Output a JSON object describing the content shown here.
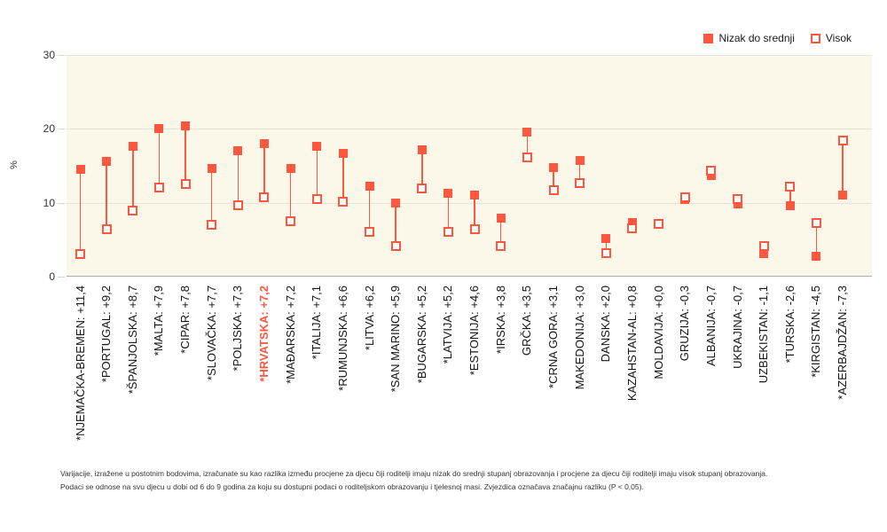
{
  "legend": {
    "items": [
      {
        "label": "Nizak do srednji",
        "marker": "filled-square"
      },
      {
        "label": "Visok",
        "marker": "open-square"
      }
    ]
  },
  "y_axis": {
    "label": "%",
    "ticks": [
      0,
      10,
      20,
      30
    ],
    "max": 30
  },
  "colors": {
    "accent": "#FF5640",
    "plot_bg": "#FCF8E9",
    "grid": "#E5E2D6",
    "axis_zero": "#ABABAB"
  },
  "chart_data": {
    "type": "dumbbell",
    "title": "",
    "xlabel": "",
    "ylabel": "%",
    "ylim": [
      0,
      30
    ],
    "grid": true,
    "legend_position": "top-right",
    "series_names": [
      "Nizak do srednji",
      "Visok"
    ],
    "points": [
      {
        "label": "*NJEMAČKA-BREMEN: +11,4",
        "country": "Njemačka-Bremen",
        "diff": "+11,4",
        "low_mid": 14.5,
        "high": 3.1,
        "highlight": false
      },
      {
        "label": "*PORTUGAL: +9,2",
        "country": "Portugal",
        "diff": "+9,2",
        "low_mid": 15.6,
        "high": 6.4,
        "highlight": false
      },
      {
        "label": "*ŠPANJOLSKA: +8,7",
        "country": "Španjolska",
        "diff": "+8,7",
        "low_mid": 17.6,
        "high": 8.9,
        "highlight": false
      },
      {
        "label": "*MALTA: +7,9",
        "country": "Malta",
        "diff": "+7,9",
        "low_mid": 20.0,
        "high": 12.1,
        "highlight": false
      },
      {
        "label": "*CIPAR: +7,8",
        "country": "Cipar",
        "diff": "+7,8",
        "low_mid": 20.4,
        "high": 12.6,
        "highlight": false
      },
      {
        "label": "*SLOVAČKA: +7,7",
        "country": "Slovačka",
        "diff": "+7,7",
        "low_mid": 14.7,
        "high": 7.0,
        "highlight": false
      },
      {
        "label": "*POLJSKA: +7,3",
        "country": "Poljska",
        "diff": "+7,3",
        "low_mid": 17.0,
        "high": 9.7,
        "highlight": false
      },
      {
        "label": "*HRVATSKA: +7,2",
        "country": "Hrvatska",
        "diff": "+7,2",
        "low_mid": 18.0,
        "high": 10.8,
        "highlight": true
      },
      {
        "label": "*MAĐARSKA: +7,2",
        "country": "Mađarska",
        "diff": "+7,2",
        "low_mid": 14.7,
        "high": 7.5,
        "highlight": false
      },
      {
        "label": "*ITALIJA: +7,1",
        "country": "Italija",
        "diff": "+7,1",
        "low_mid": 17.6,
        "high": 10.5,
        "highlight": false
      },
      {
        "label": "*RUMUNJSKA: +6,6",
        "country": "Rumunjska",
        "diff": "+6,6",
        "low_mid": 16.7,
        "high": 10.1,
        "highlight": false
      },
      {
        "label": "*LITVA: +6,2",
        "country": "Litva",
        "diff": "+6,2",
        "low_mid": 12.3,
        "high": 6.1,
        "highlight": false
      },
      {
        "label": "*SAN MARINO: +5,9",
        "country": "San Marino",
        "diff": "+5,9",
        "low_mid": 10.0,
        "high": 4.1,
        "highlight": false
      },
      {
        "label": "*BUGARSKA: +5,2",
        "country": "Bugarska",
        "diff": "+5,2",
        "low_mid": 17.2,
        "high": 12.0,
        "highlight": false
      },
      {
        "label": "*LATVIJA: +5,2",
        "country": "Latvija",
        "diff": "+5,2",
        "low_mid": 11.3,
        "high": 6.1,
        "highlight": false
      },
      {
        "label": "*ESTONIJA: +4,6",
        "country": "Estonija",
        "diff": "+4,6",
        "low_mid": 11.0,
        "high": 6.4,
        "highlight": false
      },
      {
        "label": "*IRSKA: +3,8",
        "country": "Irska",
        "diff": "+3,8",
        "low_mid": 7.9,
        "high": 4.1,
        "highlight": false
      },
      {
        "label": "GRČKA: +3,5",
        "country": "Grčka",
        "diff": "+3,5",
        "low_mid": 19.6,
        "high": 16.1,
        "highlight": false
      },
      {
        "label": "*CRNA GORA: +3,1",
        "country": "Crna Gora",
        "diff": "+3,1",
        "low_mid": 14.8,
        "high": 11.7,
        "highlight": false
      },
      {
        "label": "MAKEDONIJA: +3,0",
        "country": "Makedonija",
        "diff": "+3,0",
        "low_mid": 15.7,
        "high": 12.7,
        "highlight": false
      },
      {
        "label": "DANSKA: +2,0",
        "country": "Danska",
        "diff": "+2,0",
        "low_mid": 5.2,
        "high": 3.2,
        "highlight": false
      },
      {
        "label": "KAZAHSTAN-AL: +0,8",
        "country": "Kazahstan-Al",
        "diff": "+0,8",
        "low_mid": 7.3,
        "high": 6.5,
        "highlight": false
      },
      {
        "label": "MOLDAVIJA: +0,0",
        "country": "Moldavija",
        "diff": "+0,0",
        "low_mid": 7.2,
        "high": 7.2,
        "highlight": false
      },
      {
        "label": "GRUZIJA: -0,3",
        "country": "Gruzija",
        "diff": "-0,3",
        "low_mid": 10.5,
        "high": 10.8,
        "highlight": false
      },
      {
        "label": "ALBANIJA: -0,7",
        "country": "Albanija",
        "diff": "-0,7",
        "low_mid": 13.7,
        "high": 14.4,
        "highlight": false
      },
      {
        "label": "UKRAJINA: -0,7",
        "country": "Ukrajina",
        "diff": "-0,7",
        "low_mid": 9.8,
        "high": 10.5,
        "highlight": false
      },
      {
        "label": "UZBEKISTAN: -1,1",
        "country": "Uzbekistan",
        "diff": "-1,1",
        "low_mid": 3.1,
        "high": 4.2,
        "highlight": false
      },
      {
        "label": "*TURSKA: -2,6",
        "country": "Turska",
        "diff": "-2,6",
        "low_mid": 9.6,
        "high": 12.2,
        "highlight": false
      },
      {
        "label": "*KIRGISTAN: -4,5",
        "country": "Kirgistan",
        "diff": "-4,5",
        "low_mid": 2.8,
        "high": 7.3,
        "highlight": false
      },
      {
        "label": "*AZERBAJDŽAN: -7,3",
        "country": "Azerbajdžan",
        "diff": "-7,3",
        "low_mid": 11.1,
        "high": 18.4,
        "highlight": false
      }
    ]
  },
  "footnote": {
    "line1": "Varijacije, izražene u postotnim bodovima, izračunate su kao razlika između procjene za djecu čiji roditelji imaju nizak do srednji stupanj obrazovanja i procjene za djecu čiji roditelji imaju visok stupanj obrazovanja.",
    "line2": "Podaci se odnose na svu djecu u dobi od 6 do 9 godina za koju su dostupni podaci o roditeljskom obrazovanju i tjelesnoj masi. Zvjezdica označava značajnu razliku (P < 0,05)."
  }
}
